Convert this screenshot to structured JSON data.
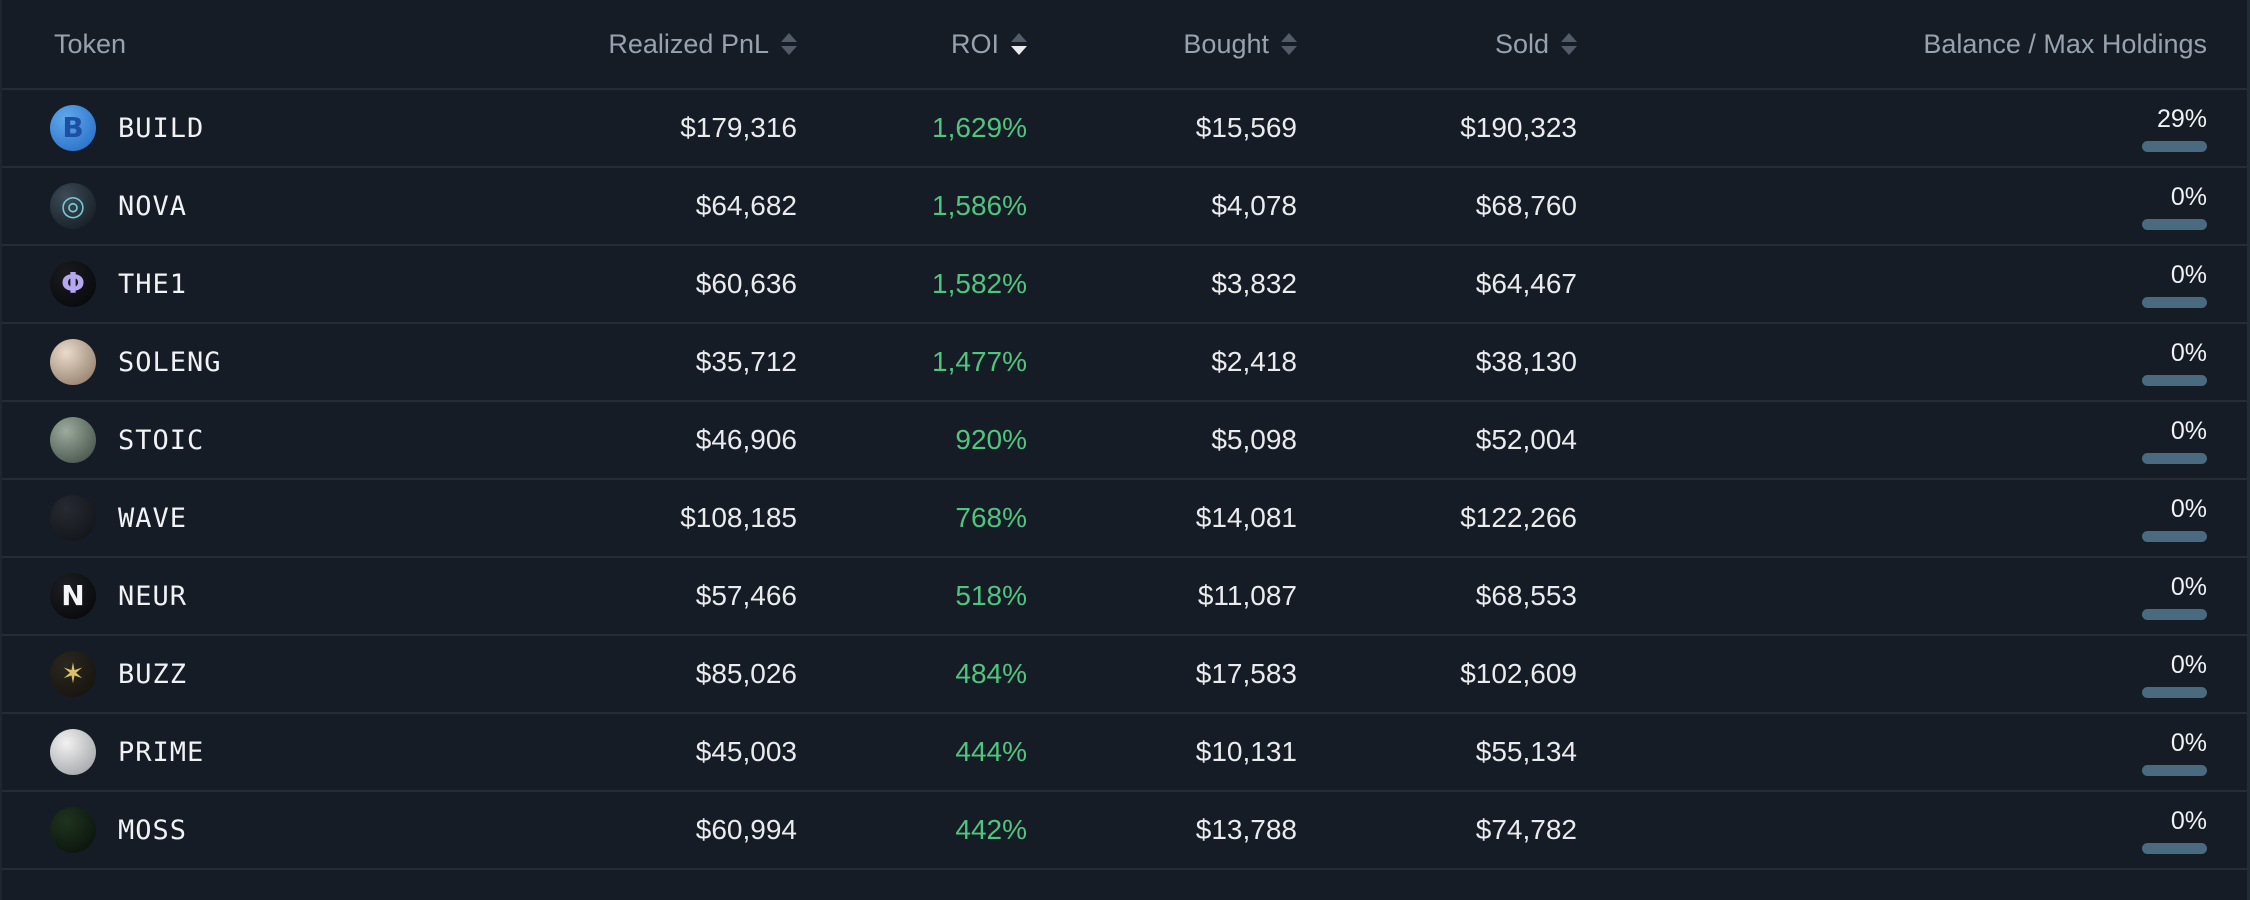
{
  "table": {
    "columns": [
      {
        "label": "Token",
        "sortable": false,
        "sort": "none"
      },
      {
        "label": "Realized PnL",
        "sortable": true,
        "sort": "none"
      },
      {
        "label": "ROI",
        "sortable": true,
        "sort": "desc"
      },
      {
        "label": "Bought",
        "sortable": true,
        "sort": "none"
      },
      {
        "label": "Sold",
        "sortable": true,
        "sort": "none"
      },
      {
        "label": "Balance / Max Holdings",
        "sortable": false,
        "sort": "none"
      }
    ],
    "rows": [
      {
        "token": "BUILD",
        "icon": {
          "name": "build-token-icon",
          "glyph": "B",
          "glyph_color": "#1d4fa3",
          "bg1": "#5fabec",
          "bg2": "#2165c2"
        },
        "realized_pnl": "$179,316",
        "roi": "1,629%",
        "bought": "$15,569",
        "sold": "$190,323",
        "balance_label": "29%",
        "balance_pct": 29
      },
      {
        "token": "NOVA",
        "icon": {
          "name": "nova-lens-icon",
          "glyph": "◎",
          "glyph_color": "#74c8d4",
          "bg1": "#3c4c58",
          "bg2": "#10161c"
        },
        "realized_pnl": "$64,682",
        "roi": "1,586%",
        "bought": "$4,078",
        "sold": "$68,760",
        "balance_label": "0%",
        "balance_pct": 0
      },
      {
        "token": "THE1",
        "icon": {
          "name": "the1-token-icon",
          "glyph": "Φ",
          "glyph_color": "#a austria",
          "bg1": "#1a1b20",
          "bg2": "#050608"
        },
        "realized_pnl": "$60,636",
        "roi": "1,582%",
        "bought": "$3,832",
        "sold": "$64,467",
        "balance_label": "0%",
        "balance_pct": 0
      },
      {
        "token": "SOLENG",
        "icon": {
          "name": "soleng-avatar-icon",
          "glyph": "",
          "glyph_color": "#ffffff",
          "bg1": "#e9dbca",
          "bg2": "#86705e"
        },
        "realized_pnl": "$35,712",
        "roi": "1,477%",
        "bought": "$2,418",
        "sold": "$38,130",
        "balance_label": "0%",
        "balance_pct": 0
      },
      {
        "token": "STOIC",
        "icon": {
          "name": "stoic-samurai-icon",
          "glyph": "",
          "glyph_color": "#ffffff",
          "bg1": "#9cab9d",
          "bg2": "#38453d"
        },
        "realized_pnl": "$46,906",
        "roi": "920%",
        "bought": "$5,098",
        "sold": "$52,004",
        "balance_label": "0%",
        "balance_pct": 0
      },
      {
        "token": "WAVE",
        "icon": {
          "name": "wave-token-icon",
          "glyph": "",
          "glyph_color": "#3a3f46",
          "bg1": "#272b31",
          "bg2": "#0e1116"
        },
        "realized_pnl": "$108,185",
        "roi": "768%",
        "bought": "$14,081",
        "sold": "$122,266",
        "balance_label": "0%",
        "balance_pct": 0
      },
      {
        "token": "NEUR",
        "icon": {
          "name": "neur-token-icon",
          "glyph": "N",
          "glyph_color": "#f5f6f8",
          "bg1": "#1d1f24",
          "bg2": "#040507"
        },
        "realized_pnl": "$57,466",
        "roi": "518%",
        "bought": "$11,087",
        "sold": "$68,553",
        "balance_label": "0%",
        "balance_pct": 0
      },
      {
        "token": "BUZZ",
        "icon": {
          "name": "buzz-bee-icon",
          "glyph": "✶",
          "glyph_color": "#d9c066",
          "bg1": "#2b2720",
          "bg2": "#13110c"
        },
        "realized_pnl": "$85,026",
        "roi": "484%",
        "bought": "$17,583",
        "sold": "$102,609",
        "balance_label": "0%",
        "balance_pct": 0
      },
      {
        "token": "PRIME",
        "icon": {
          "name": "prime-token-icon",
          "glyph": "",
          "glyph_color": "#6b6f73",
          "bg1": "#f2f2f2",
          "bg2": "#95989c"
        },
        "realized_pnl": "$45,003",
        "roi": "444%",
        "bought": "$10,131",
        "sold": "$55,134",
        "balance_label": "0%",
        "balance_pct": 0
      },
      {
        "token": "MOSS",
        "icon": {
          "name": "moss-robot-icon",
          "glyph": "",
          "glyph_color": "#4f9b4f",
          "bg1": "#1f3320",
          "bg2": "#070f08"
        },
        "realized_pnl": "$60,994",
        "roi": "442%",
        "bought": "$13,788",
        "sold": "$74,782",
        "balance_label": "0%",
        "balance_pct": 0
      }
    ]
  },
  "colors": {
    "background": "#161c25",
    "divider": "#242c37",
    "header_text": "#98a2ae",
    "value_text": "#e9ebed",
    "roi_green": "#4fc57e",
    "bar_track": "#4a6a80",
    "bar_fill": "#8ecdf3",
    "sort_inactive": "#525c69",
    "sort_active": "#e9ebed"
  }
}
